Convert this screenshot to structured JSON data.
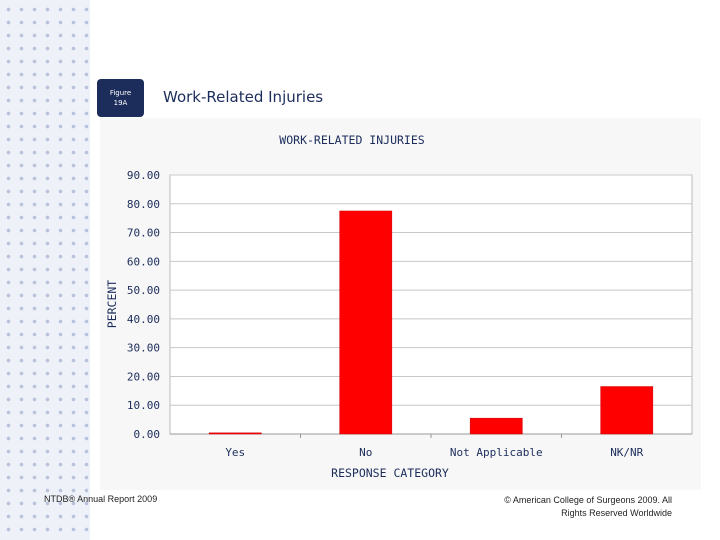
{
  "slide": {
    "badge_line1": "Figure",
    "badge_line2": "19A",
    "title": "Work-Related Injuries"
  },
  "footer": {
    "left": "NTDB® Annual Report 2009",
    "right_line1": "© American College of Surgeons 2009.  All",
    "right_line2": "Rights Reserved Worldwide"
  },
  "colors": {
    "bar": "#ff0000",
    "axis_text": "#1c2d5c",
    "grid": "#c8c8c8"
  },
  "chart_data": {
    "type": "bar",
    "title": "WORK-RELATED INJURIES",
    "xlabel": "RESPONSE CATEGORY",
    "ylabel": "PERCENT",
    "categories": [
      "Yes",
      "No",
      "Not Applicable",
      "NK/NR"
    ],
    "values": [
      0.4,
      77.5,
      5.5,
      16.5
    ],
    "ylim": [
      0,
      90
    ],
    "yticks": [
      "0.00",
      "10.00",
      "20.00",
      "30.00",
      "40.00",
      "50.00",
      "60.00",
      "70.00",
      "80.00",
      "90.00"
    ],
    "grid": true,
    "legend": "none"
  }
}
